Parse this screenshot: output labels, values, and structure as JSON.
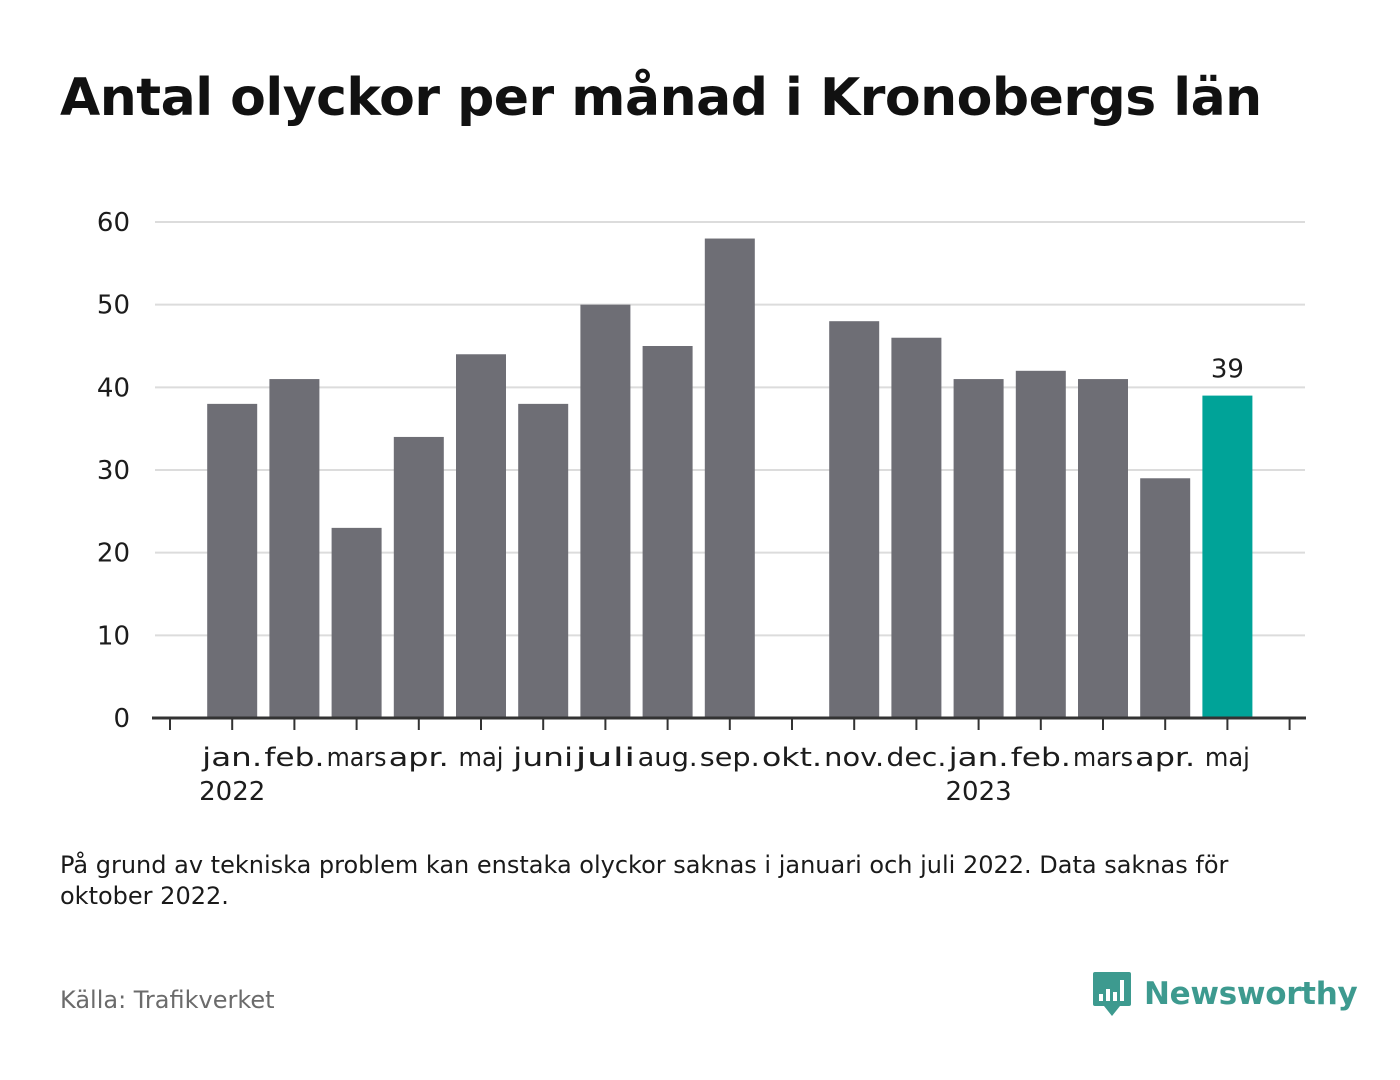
{
  "title": "Antal olyckor per månad i Kronobergs län",
  "chart_data": {
    "type": "bar",
    "categories": [
      "jan.",
      "feb.",
      "mars",
      "apr.",
      "maj",
      "juni",
      "juli",
      "aug.",
      "sep.",
      "okt.",
      "nov.",
      "dec.",
      "jan.",
      "feb.",
      "mars",
      "apr.",
      "maj"
    ],
    "year_labels": [
      {
        "index": 0,
        "label": "2022"
      },
      {
        "index": 12,
        "label": "2023"
      }
    ],
    "values": [
      38,
      41,
      23,
      34,
      44,
      38,
      50,
      45,
      58,
      null,
      48,
      46,
      41,
      42,
      41,
      29,
      39
    ],
    "highlight_index": 16,
    "highlight_label": "39",
    "yticks": [
      0,
      10,
      20,
      30,
      40,
      50,
      60
    ],
    "ylim": [
      0,
      60
    ],
    "grid": true,
    "colors": {
      "bar": "#6e6e75",
      "highlight": "#00a398",
      "grid": "#dcdcdc",
      "axis": "#333333"
    }
  },
  "note": "På grund av tekniska problem kan enstaka olyckor saknas i januari och juli 2022. Data saknas för oktober 2022.",
  "source": "Källa: Trafikverket",
  "brand": {
    "name": "Newsworthy",
    "icon": "bar-chart-speech-bubble-icon",
    "color": "#3d9a8f"
  }
}
